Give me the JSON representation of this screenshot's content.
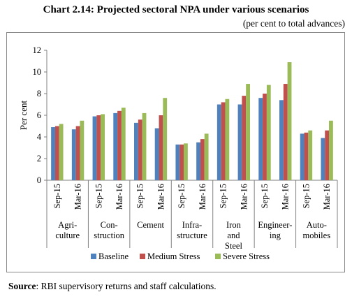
{
  "title": "Chart 2.14: Projected sectoral NPA under various scenarios",
  "subtitle": "(per cent to total advances)",
  "source": {
    "label": "Source",
    "text": ": RBI supervisory returns and staff calculations."
  },
  "chart_data": {
    "type": "bar",
    "ylabel": "Per cent",
    "xlabel": "",
    "ylim": [
      0,
      12
    ],
    "yticks": [
      0,
      2,
      4,
      6,
      8,
      10,
      12
    ],
    "grid": false,
    "legend_position": "bottom",
    "groups": [
      {
        "label": [
          "Agri-",
          "culture"
        ],
        "periods": [
          "Sep-15",
          "Mar-16"
        ]
      },
      {
        "label": [
          "Con-",
          "struction"
        ],
        "periods": [
          "Sep-15",
          "Mar-16"
        ]
      },
      {
        "label": [
          "Cement"
        ],
        "periods": [
          "Sep-15",
          "Mar-16"
        ]
      },
      {
        "label": [
          "Infra-",
          "structure"
        ],
        "periods": [
          "Sep-15",
          "Mar-16"
        ]
      },
      {
        "label": [
          "Iron",
          "and",
          "Steel"
        ],
        "periods": [
          "Sep-15",
          "Mar-16"
        ]
      },
      {
        "label": [
          "Engineer-",
          "ing"
        ],
        "periods": [
          "Sep-15",
          "Mar-16"
        ]
      },
      {
        "label": [
          "Auto-",
          "mobiles"
        ],
        "periods": [
          "Sep-15",
          "Mar-16"
        ]
      }
    ],
    "categories": [
      "Sep-15",
      "Mar-16",
      "Sep-15",
      "Mar-16",
      "Sep-15",
      "Mar-16",
      "Sep-15",
      "Mar-16",
      "Sep-15",
      "Mar-16",
      "Sep-15",
      "Mar-16",
      "Sep-15",
      "Mar-16"
    ],
    "series": [
      {
        "name": "Baseline",
        "color": "#4f81bd",
        "values": [
          4.9,
          4.7,
          5.9,
          6.2,
          5.3,
          4.8,
          3.3,
          3.5,
          7.0,
          7.0,
          7.6,
          7.4,
          4.3,
          3.9
        ]
      },
      {
        "name": "Medium Stress",
        "color": "#c0504d",
        "values": [
          5.0,
          5.0,
          6.0,
          6.4,
          5.6,
          6.0,
          3.3,
          3.8,
          7.2,
          7.8,
          8.0,
          8.9,
          4.4,
          4.6
        ]
      },
      {
        "name": "Severe Stress",
        "color": "#9bbb59",
        "values": [
          5.2,
          5.5,
          6.1,
          6.7,
          6.2,
          7.6,
          3.4,
          4.3,
          7.5,
          8.9,
          8.8,
          10.9,
          4.6,
          5.5
        ]
      }
    ]
  }
}
